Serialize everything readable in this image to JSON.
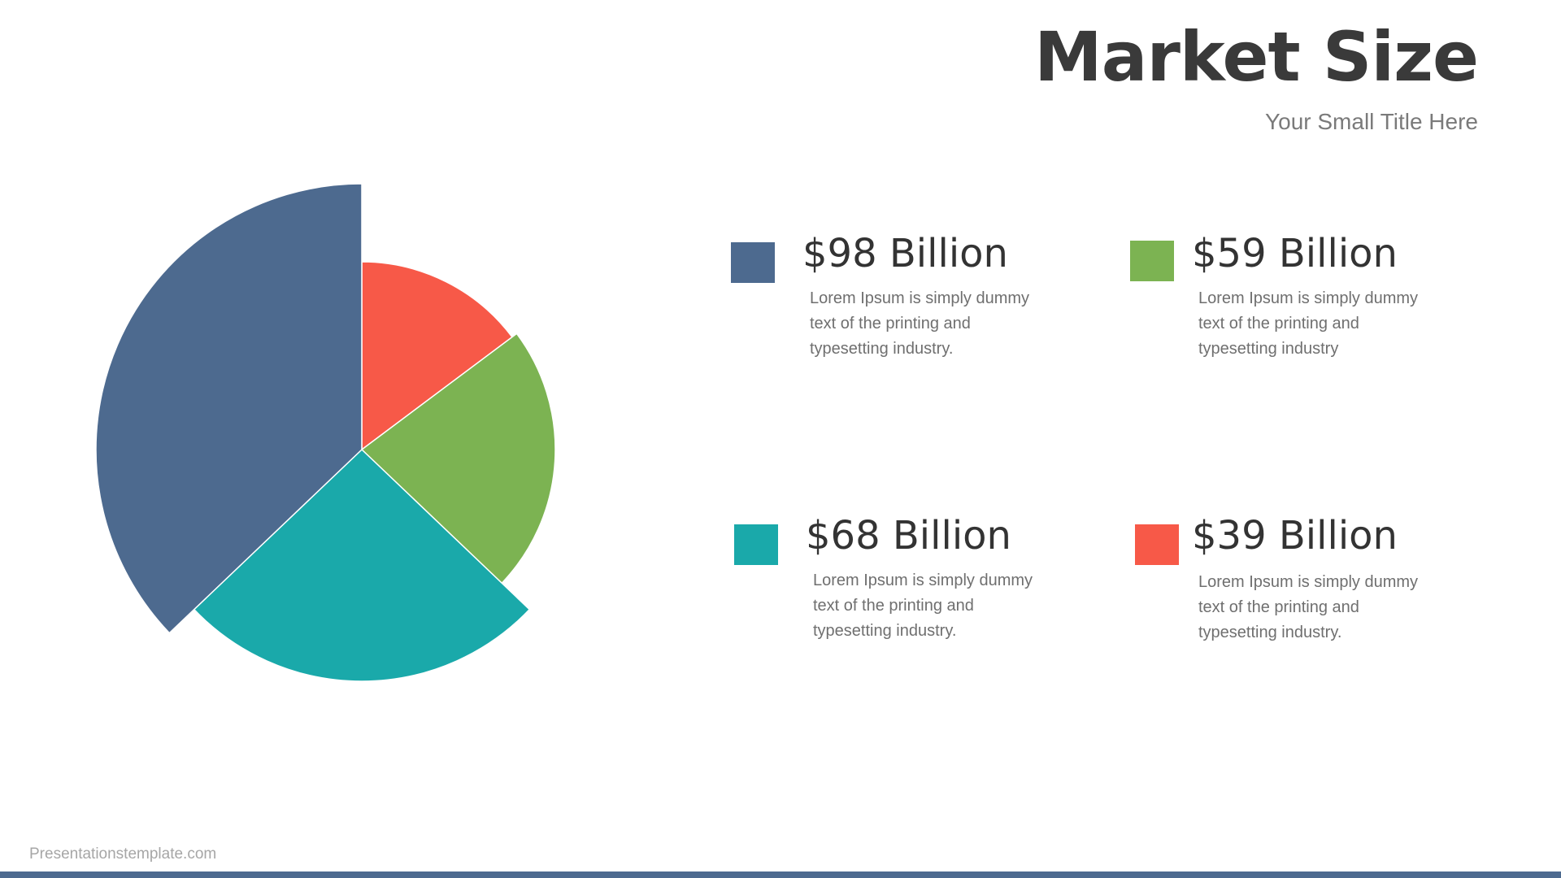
{
  "title": "Market Size",
  "subtitle": "Your Small Title Here",
  "footer": "Presentationstemplate.com",
  "colors": {
    "blue": "#4d6a8f",
    "red": "#f75948",
    "green": "#7cb352",
    "teal": "#1aa9aa",
    "title": "#3a3a3a",
    "footer_bar": "#4d6a8f"
  },
  "chart_data": {
    "type": "pie",
    "title": "",
    "categories": [
      "$98 Billion",
      "$59 Billion",
      "$68 Billion",
      "$39 Billion"
    ],
    "values": [
      98,
      59,
      68,
      39
    ],
    "colors": [
      "#4d6a8f",
      "#7cb352",
      "#1aa9aa",
      "#f75948"
    ],
    "legend": [
      {
        "label": "$98 Billion",
        "color": "#4d6a8f",
        "text": "Lorem Ipsum is simply dummy text of the printing and typesetting industry."
      },
      {
        "label": "$59 Billion",
        "color": "#7cb352",
        "text": "Lorem Ipsum is simply dummy text of the printing and typesetting industry"
      },
      {
        "label": "$68 Billion",
        "color": "#1aa9aa",
        "text": "Lorem Ipsum is simply dummy text of the printing and typesetting industry."
      },
      {
        "label": "$39 Billion",
        "color": "#f75948",
        "text": "Lorem Ipsum is simply dummy text of the printing and typesetting industry."
      }
    ],
    "slice_order_clockwise_from_top": [
      "$39 Billion",
      "$59 Billion",
      "$68 Billion",
      "$98 Billion"
    ],
    "exploded_style": "each slice drawn with a different radius (nightingale-like)",
    "legend_placement": "right"
  }
}
